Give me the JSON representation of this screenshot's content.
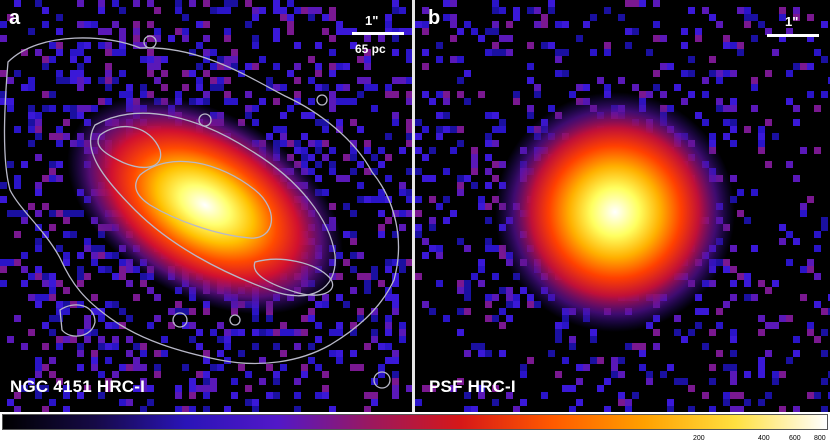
{
  "panel_a": {
    "letter": "a",
    "caption": "NGC 4151 HRC-I",
    "scale_primary": "1\"",
    "scale_secondary": "65 pc"
  },
  "panel_b": {
    "letter": "b",
    "caption": "PSF HRC-I",
    "scale_primary": "1\""
  },
  "colorbar": {
    "tick_labels": [
      "200",
      "400",
      "600",
      "800"
    ],
    "colors": [
      "#000000",
      "#160a46",
      "#2a14b8",
      "#5218c8",
      "#9a1860",
      "#d61818",
      "#ff5a00",
      "#ffa000",
      "#ffe040",
      "#ffffff"
    ]
  },
  "contour_color": "#b8b8c8"
}
